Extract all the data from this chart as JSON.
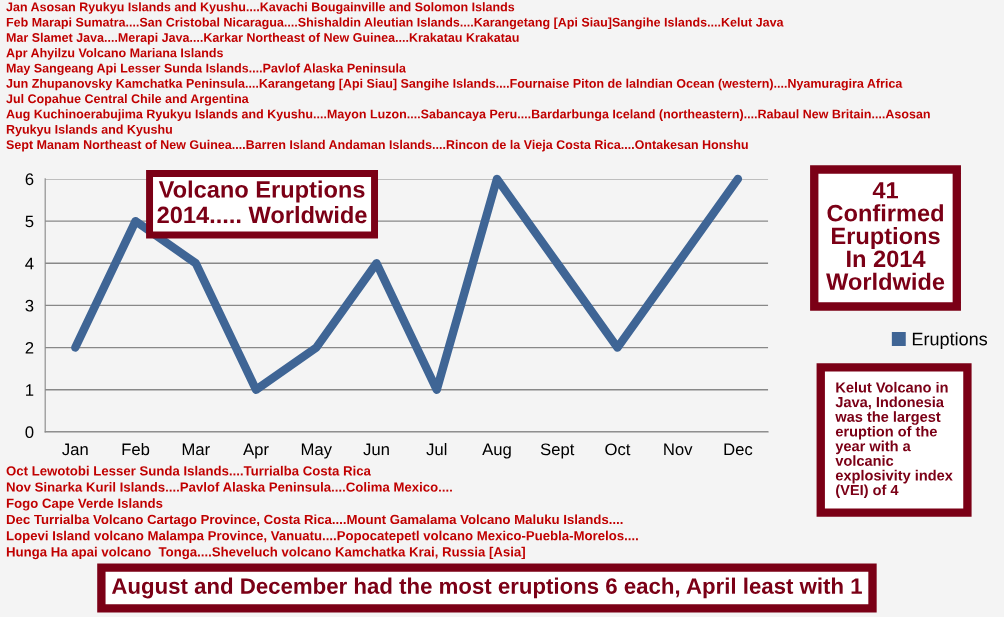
{
  "chart_data": {
    "type": "line",
    "title": "Volcano Eruptions\n2014..... Worldwide",
    "categories": [
      "Jan",
      "Feb",
      "Mar",
      "Apr",
      "May",
      "Jun",
      "Jul",
      "Aug",
      "Sept",
      "Oct",
      "Nov",
      "Dec"
    ],
    "series": [
      {
        "name": "Eruptions",
        "color": "#3f6595",
        "values": [
          2,
          5,
          4,
          1,
          2,
          4,
          1,
          6,
          4,
          2,
          4,
          6
        ]
      }
    ],
    "ylim": [
      0,
      6
    ],
    "yticks": [
      0,
      1,
      2,
      3,
      4,
      5,
      6
    ],
    "grid": "y",
    "legend": "right",
    "annotations": [
      "Jan Asosan Ryukyu Islands and Kyushu....Kavachi Bougainville and Solomon Islands",
      "Feb Marapi Sumatra....San Cristobal Nicaragua....Shishaldin Aleutian Islands....Karangetang [Api Siau]Sangihe Islands....Kelut Java",
      "Mar Slamet Java....Merapi Java....Karkar Northeast of New Guinea....Krakatau Krakatau",
      "Apr Ahyilzu Volcano Mariana Islands",
      "May Sangeang Api Lesser Sunda Islands....Pavlof Alaska Peninsula",
      "Jun Zhupanovsky Kamchatka Peninsula....Karangetang [Api Siau] Sangihe Islands....Fournaise Piton de laIndian Ocean (western)....Nyamuragira Africa",
      "Jul Copahue Central Chile and Argentina",
      "Aug Kuchinoerabujima Ryukyu Islands and Kyushu....Mayon Luzon....Sabancaya Peru....Bardarbunga Iceland (northeastern)....Rabaul New Britain....Asosan",
      "Ryukyu Islands and Kyushu",
      "Sept Manam Northeast of New Guinea....Barren Island Andaman Islands....Rincon de la Vieja Costa Rica....Ontakesan Honshu",
      "Oct Lewotobi Lesser Sunda Islands....Turrialba Costa Rica",
      "Nov Sinarka Kuril Islands....Pavlof Alaska Peninsula....Colima Mexico....",
      "Fogo Cape Verde Islands",
      "Dec Turrialba Volcano Cartago Province, Costa Rica....Mount Gamalama Volcano Maluku Islands....",
      "Lopevi Island volcano Malampa Province, Vanuatu....Popocatepetl volcano Mexico-Puebla-Morelos....",
      "Hunga Ha apai volcano  Tonga....Sheveluch volcano Kamchatka Krai, Russia [Asia]",
      "41\nConfirmed\nEruptions\nIn 2014\nWorldwide",
      "Kelut Volcano in\nJava, Indonesia\nwas the largest\neruption of the\nyear with a\nvolcanic\nexplosivity index\n(VEI) of 4",
      "August and December had the most eruptions 6 each, April least with 1"
    ]
  }
}
